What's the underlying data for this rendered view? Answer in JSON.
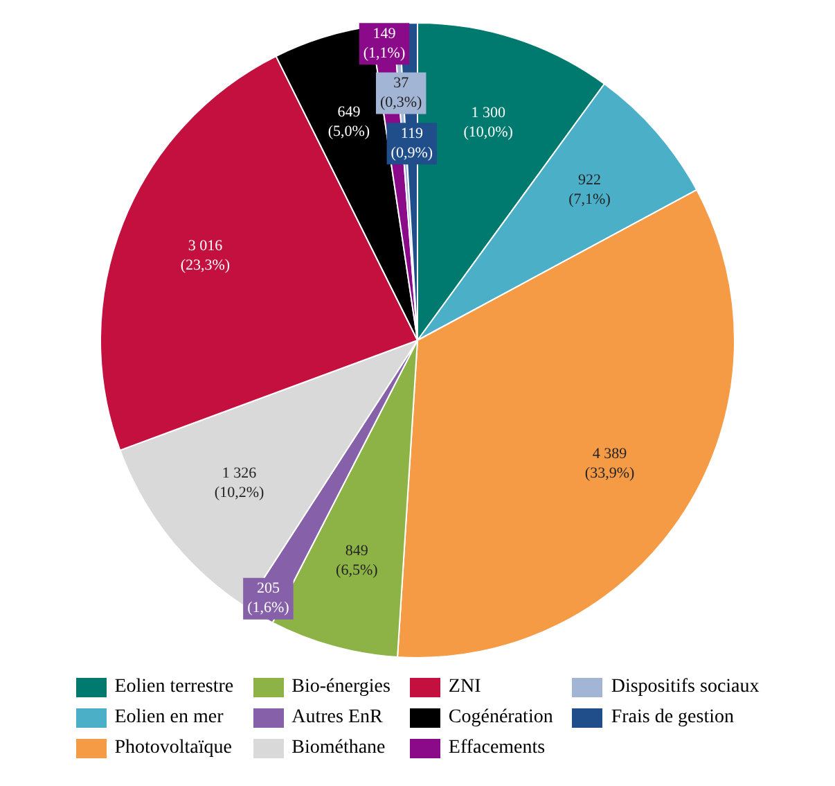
{
  "chart_data": {
    "type": "pie",
    "categories": [
      "Eolien terrestre",
      "Eolien en mer",
      "Photovoltaïque",
      "Bio-énergies",
      "Autres EnR",
      "Biométhane",
      "ZNI",
      "Cogénération",
      "Effacements",
      "Dispositifs sociaux",
      "Frais de gestion"
    ],
    "values": [
      1300,
      922,
      4389,
      849,
      205,
      1326,
      3016,
      649,
      149,
      37,
      119
    ],
    "colors": [
      "#007a6e",
      "#4bafc8",
      "#f59a45",
      "#8db346",
      "#8660a8",
      "#d9d9d9",
      "#c3103f",
      "#000000",
      "#8a0a8a",
      "#a3b5d4",
      "#1f4e8a"
    ],
    "value_labels": [
      "1 300\n(10,0%)",
      "922\n(7,1%)",
      "4 389\n(33,9%)",
      "849\n(6,5%)",
      "205\n(1,6%)",
      "1 326\n(10,2%)",
      "3 016\n(23,3%)",
      "649\n(5,0%)",
      "149\n(1,1%)",
      "37\n(0,3%)",
      "119\n(0,9%)"
    ],
    "legend": "bottom"
  }
}
